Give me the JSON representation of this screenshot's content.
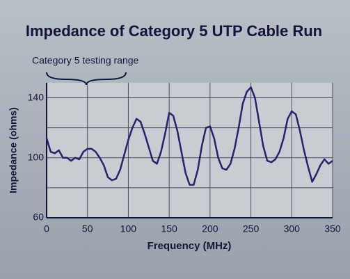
{
  "chart_data": {
    "type": "line",
    "title": "Impedance of Category 5 UTP Cable Run",
    "annotation": "Category 5 testing range",
    "x_label": "Frequency (MHz)",
    "y_label": "Impedance (ohms)",
    "xlim": [
      0,
      350
    ],
    "ylim": [
      60,
      150
    ],
    "xticks": [
      0,
      50,
      100,
      150,
      200,
      250,
      300,
      350
    ],
    "yticks": [
      60,
      100,
      140
    ],
    "ygrid": [
      60,
      80,
      100,
      120,
      140
    ],
    "grid": true,
    "x": [
      0,
      5,
      10,
      15,
      20,
      25,
      30,
      35,
      40,
      45,
      50,
      55,
      60,
      65,
      70,
      75,
      80,
      85,
      90,
      95,
      100,
      105,
      110,
      115,
      120,
      125,
      130,
      135,
      140,
      145,
      150,
      155,
      160,
      165,
      170,
      175,
      180,
      185,
      190,
      195,
      200,
      205,
      210,
      215,
      220,
      225,
      230,
      235,
      240,
      245,
      250,
      255,
      260,
      265,
      270,
      275,
      280,
      285,
      290,
      295,
      300,
      305,
      310,
      315,
      320,
      325,
      330,
      335,
      340,
      345,
      350
    ],
    "series": [
      {
        "name": "Impedance",
        "color": "#23236e",
        "values": [
          113,
          104,
          103,
          105,
          100,
          100,
          98,
          100,
          99,
          104,
          106,
          106,
          104,
          100,
          95,
          87,
          85,
          86,
          92,
          102,
          112,
          120,
          126,
          124,
          116,
          107,
          98,
          96,
          104,
          116,
          130,
          128,
          118,
          104,
          90,
          82,
          82,
          92,
          108,
          120,
          121,
          113,
          100,
          93,
          92,
          96,
          106,
          120,
          136,
          144,
          147,
          140,
          124,
          108,
          98,
          97,
          99,
          104,
          113,
          126,
          131,
          129,
          118,
          105,
          94,
          84,
          89,
          95,
          99,
          96,
          98
        ]
      }
    ]
  }
}
